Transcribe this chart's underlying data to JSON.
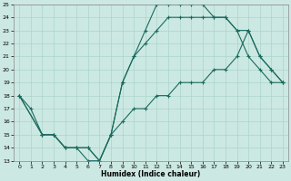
{
  "xlabel": "Humidex (Indice chaleur)",
  "bg_color": "#cce8e2",
  "grid_color": "#aad4cc",
  "line_color": "#1a6b60",
  "xlim": [
    0,
    23
  ],
  "ylim": [
    13,
    25
  ],
  "xticks": [
    0,
    1,
    2,
    3,
    4,
    5,
    6,
    7,
    8,
    9,
    10,
    11,
    12,
    13,
    14,
    15,
    16,
    17,
    18,
    19,
    20,
    21,
    22,
    23
  ],
  "yticks": [
    13,
    14,
    15,
    16,
    17,
    18,
    19,
    20,
    21,
    22,
    23,
    24,
    25
  ],
  "curves": [
    {
      "x": [
        0,
        1,
        2,
        3,
        4,
        5,
        6,
        7,
        8,
        9,
        10,
        11,
        12,
        13,
        14,
        15,
        16,
        17,
        18,
        19,
        20,
        21,
        22,
        23
      ],
      "y": [
        18,
        17,
        15,
        15,
        14,
        14,
        13,
        13,
        15,
        19,
        21,
        23,
        25,
        25,
        25,
        25,
        25,
        24,
        24,
        23,
        21,
        20,
        19,
        19
      ]
    },
    {
      "x": [
        0,
        2,
        3,
        4,
        5,
        6,
        7,
        8,
        9,
        10,
        11,
        12,
        13,
        14,
        15,
        16,
        17,
        18,
        19,
        20,
        21,
        22,
        23
      ],
      "y": [
        18,
        15,
        15,
        14,
        14,
        14,
        13,
        15,
        19,
        21,
        22,
        23,
        24,
        24,
        24,
        24,
        24,
        24,
        23,
        23,
        21,
        20,
        19
      ]
    },
    {
      "x": [
        0,
        2,
        3,
        4,
        5,
        6,
        7,
        8,
        9,
        10,
        11,
        12,
        13,
        14,
        15,
        16,
        17,
        18,
        19,
        20,
        21,
        22,
        23
      ],
      "y": [
        18,
        15,
        15,
        14,
        14,
        14,
        13,
        15,
        16,
        17,
        17,
        18,
        18,
        19,
        19,
        19,
        20,
        20,
        21,
        23,
        21,
        20,
        19
      ]
    }
  ]
}
